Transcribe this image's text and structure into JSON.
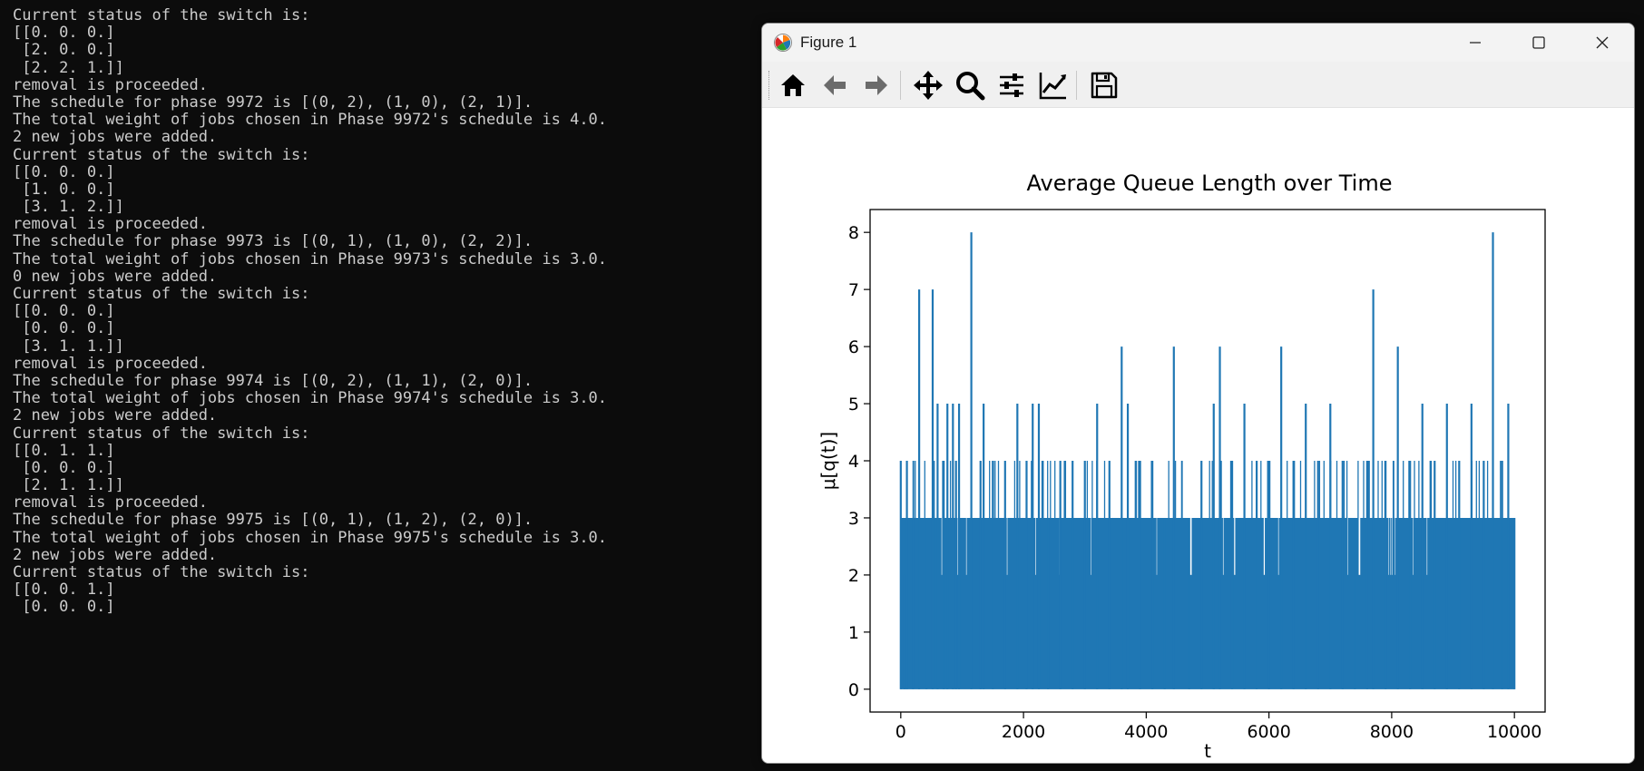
{
  "terminal": {
    "lines": [
      "Current status of the switch is:",
      "[[0. 0. 0.]",
      " [2. 0. 0.]",
      " [2. 2. 1.]]",
      "removal is proceeded.",
      "The schedule for phase 9972 is [(0, 2), (1, 0), (2, 1)].",
      "The total weight of jobs chosen in Phase 9972's schedule is 4.0.",
      "2 new jobs were added.",
      "Current status of the switch is:",
      "[[0. 0. 0.]",
      " [1. 0. 0.]",
      " [3. 1. 2.]]",
      "removal is proceeded.",
      "The schedule for phase 9973 is [(0, 1), (1, 0), (2, 2)].",
      "The total weight of jobs chosen in Phase 9973's schedule is 3.0.",
      "0 new jobs were added.",
      "Current status of the switch is:",
      "[[0. 0. 0.]",
      " [0. 0. 0.]",
      " [3. 1. 1.]]",
      "removal is proceeded.",
      "The schedule for phase 9974 is [(0, 2), (1, 1), (2, 0)].",
      "The total weight of jobs chosen in Phase 9974's schedule is 3.0.",
      "2 new jobs were added.",
      "Current status of the switch is:",
      "[[0. 1. 1.]",
      " [0. 0. 0.]",
      " [2. 1. 1.]]",
      "removal is proceeded.",
      "The schedule for phase 9975 is [(0, 1), (1, 2), (2, 0)].",
      "The total weight of jobs chosen in Phase 9975's schedule is 3.0.",
      "2 new jobs were added.",
      "Current status of the switch is:",
      "[[0. 0. 1.]",
      " [0. 0. 0.]"
    ]
  },
  "window": {
    "title": "Figure 1",
    "icons": {
      "app": "matplotlib-icon",
      "minimize": "minimize-icon",
      "maximize": "maximize-icon",
      "close": "close-icon"
    }
  },
  "toolbar": {
    "buttons": [
      "home-icon",
      "back-arrow-icon",
      "forward-arrow-icon",
      "pan-icon",
      "zoom-icon",
      "subplots-icon",
      "axes-edit-icon",
      "save-icon"
    ]
  },
  "colors": {
    "series": "#1f77b4",
    "terminal_bg": "#0c0c0c",
    "terminal_fg": "#cccccc"
  },
  "chart_data": {
    "type": "line",
    "title": "Average Queue Length over Time",
    "xlabel": "t",
    "ylabel": "μ[q(t)]",
    "xlim": [
      -500,
      10500
    ],
    "ylim": [
      -0.4,
      8.4
    ],
    "xticks": [
      0,
      2000,
      4000,
      6000,
      8000,
      10000
    ],
    "yticks": [
      0,
      1,
      2,
      3,
      4,
      5,
      6,
      7,
      8
    ],
    "x_range": [
      0,
      10000
    ],
    "grid": false,
    "legend": "none",
    "spikes": [
      {
        "t": 0,
        "v": 4
      },
      {
        "t": 60,
        "v": 2
      },
      {
        "t": 100,
        "v": 4
      },
      {
        "t": 200,
        "v": 3
      },
      {
        "t": 300,
        "v": 7
      },
      {
        "t": 420,
        "v": 3
      },
      {
        "t": 520,
        "v": 7
      },
      {
        "t": 600,
        "v": 5
      },
      {
        "t": 700,
        "v": 4
      },
      {
        "t": 760,
        "v": 5
      },
      {
        "t": 850,
        "v": 5
      },
      {
        "t": 900,
        "v": 4
      },
      {
        "t": 950,
        "v": 5
      },
      {
        "t": 1150,
        "v": 8
      },
      {
        "t": 1300,
        "v": 4
      },
      {
        "t": 1350,
        "v": 5
      },
      {
        "t": 1500,
        "v": 4
      },
      {
        "t": 1700,
        "v": 4
      },
      {
        "t": 1900,
        "v": 5
      },
      {
        "t": 2050,
        "v": 4
      },
      {
        "t": 2150,
        "v": 5
      },
      {
        "t": 2250,
        "v": 5
      },
      {
        "t": 2400,
        "v": 3
      },
      {
        "t": 2600,
        "v": 4
      },
      {
        "t": 2800,
        "v": 4
      },
      {
        "t": 3000,
        "v": 4
      },
      {
        "t": 3200,
        "v": 5
      },
      {
        "t": 3400,
        "v": 4
      },
      {
        "t": 3600,
        "v": 6
      },
      {
        "t": 3700,
        "v": 5
      },
      {
        "t": 3900,
        "v": 4
      },
      {
        "t": 4100,
        "v": 4
      },
      {
        "t": 4300,
        "v": 3
      },
      {
        "t": 4450,
        "v": 6
      },
      {
        "t": 4700,
        "v": 3
      },
      {
        "t": 4900,
        "v": 4
      },
      {
        "t": 5100,
        "v": 5
      },
      {
        "t": 5200,
        "v": 6
      },
      {
        "t": 5400,
        "v": 4
      },
      {
        "t": 5600,
        "v": 5
      },
      {
        "t": 5800,
        "v": 4
      },
      {
        "t": 6000,
        "v": 3
      },
      {
        "t": 6200,
        "v": 6
      },
      {
        "t": 6400,
        "v": 4
      },
      {
        "t": 6600,
        "v": 5
      },
      {
        "t": 6800,
        "v": 4
      },
      {
        "t": 7000,
        "v": 5
      },
      {
        "t": 7200,
        "v": 4
      },
      {
        "t": 7400,
        "v": 3
      },
      {
        "t": 7600,
        "v": 4
      },
      {
        "t": 7700,
        "v": 7
      },
      {
        "t": 7900,
        "v": 4
      },
      {
        "t": 8100,
        "v": 6
      },
      {
        "t": 8300,
        "v": 4
      },
      {
        "t": 8500,
        "v": 5
      },
      {
        "t": 8700,
        "v": 4
      },
      {
        "t": 8900,
        "v": 5
      },
      {
        "t": 9100,
        "v": 4
      },
      {
        "t": 9300,
        "v": 5
      },
      {
        "t": 9500,
        "v": 4
      },
      {
        "t": 9650,
        "v": 8
      },
      {
        "t": 9800,
        "v": 4
      },
      {
        "t": 9900,
        "v": 5
      },
      {
        "t": 10000,
        "v": 3
      }
    ]
  }
}
